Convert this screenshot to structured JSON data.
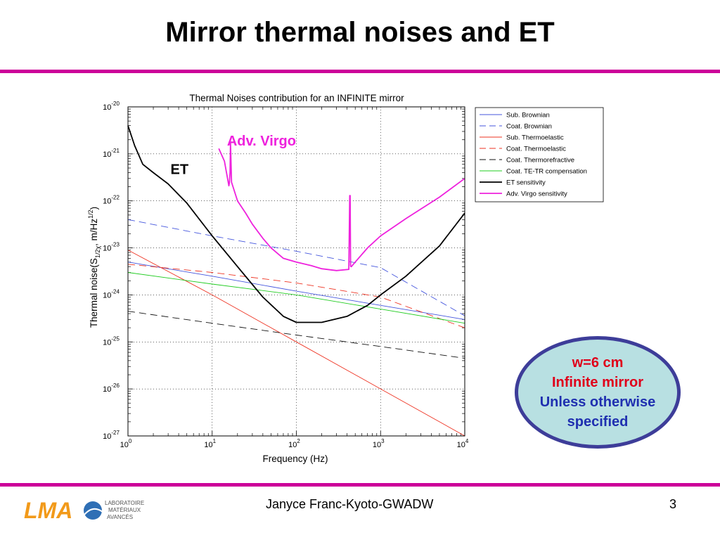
{
  "slide": {
    "title": "Mirror thermal noises and ET",
    "footer": "Janyce Franc-Kyoto-GWADW",
    "page_number": "3",
    "accent_color": "#cc0099"
  },
  "note": {
    "line1": "w=6 cm",
    "line2": "Infinite mirror",
    "line3": "Unless otherwise",
    "line4": "specified",
    "line1_color": "#e0001a",
    "line2_color": "#e0001a",
    "line3_color": "#1f2fb0",
    "line4_color": "#1f2fb0",
    "fill": "#b8e0e2",
    "border": "#3d3d99"
  },
  "logo": {
    "mark": "LMA",
    "text_line1": "LABORATOIRE",
    "text_line2": "MATÉRIAUX",
    "text_line3": "AVANCÉS",
    "icon": "lma-logo-icon"
  },
  "chart_data": {
    "type": "line",
    "title": "Thermal Noises contribution for an INFINITE mirror",
    "xlabel": "Frequency (Hz)",
    "ylabel": "Thermal noise(S",
    "ylabel_sub": "1/2χ",
    "ylabel_mid": ", m/Hz",
    "ylabel_sup": "1/2",
    "ylabel_end": ")",
    "x_scale": "log",
    "y_scale": "log",
    "xlim": [
      1,
      10000
    ],
    "ylim": [
      1e-27,
      1e-20
    ],
    "x_ticks": [
      {
        "value": 1,
        "base": "10",
        "exp": "0"
      },
      {
        "value": 10,
        "base": "10",
        "exp": "1"
      },
      {
        "value": 100,
        "base": "10",
        "exp": "2"
      },
      {
        "value": 1000,
        "base": "10",
        "exp": "3"
      },
      {
        "value": 10000,
        "base": "10",
        "exp": "4"
      }
    ],
    "y_ticks": [
      {
        "value": 1e-20,
        "base": "10",
        "exp": "-20"
      },
      {
        "value": 1e-21,
        "base": "10",
        "exp": "-21"
      },
      {
        "value": 1e-22,
        "base": "10",
        "exp": "-22"
      },
      {
        "value": 1e-23,
        "base": "10",
        "exp": "-23"
      },
      {
        "value": 1e-24,
        "base": "10",
        "exp": "-24"
      },
      {
        "value": 1e-25,
        "base": "10",
        "exp": "-25"
      },
      {
        "value": 1e-26,
        "base": "10",
        "exp": "-26"
      },
      {
        "value": 1e-27,
        "base": "10",
        "exp": "-27"
      }
    ],
    "grid": true,
    "legend_position": "outside-right-top",
    "annotations": [
      {
        "text": "Adv. Virgo",
        "color": "#ee22dd",
        "x": 15,
        "y": 1.5e-21
      },
      {
        "text": "ET",
        "color": "#000000",
        "x": 3.2,
        "y": 3.7e-22
      }
    ],
    "series": [
      {
        "name": "Sub. Brownian",
        "color": "#4455dd",
        "dash": "solid",
        "width": 0.9,
        "x": [
          1,
          10,
          100,
          1000,
          10000
        ],
        "y": [
          5e-24,
          2.5e-24,
          1.2e-24,
          6e-25,
          3e-25
        ]
      },
      {
        "name": "Coat. Brownian",
        "color": "#4455dd",
        "dash": "dashed",
        "width": 0.9,
        "x": [
          1,
          10,
          100,
          1000,
          10000
        ],
        "y": [
          4e-23,
          1.8e-23,
          8.5e-24,
          3.8e-24,
          3.6e-25
        ]
      },
      {
        "name": "Sub. Thermoelastic",
        "color": "#ee3322",
        "dash": "solid",
        "width": 0.9,
        "x": [
          1,
          10,
          100,
          1000,
          10000
        ],
        "y": [
          9e-24,
          1e-24,
          1e-25,
          1e-26,
          1e-27
        ]
      },
      {
        "name": "Coat. Thermoelastic",
        "color": "#ee3322",
        "dash": "dashed",
        "width": 0.9,
        "x": [
          1,
          10,
          100,
          1000,
          10000
        ],
        "y": [
          4.5e-24,
          3e-24,
          1.8e-24,
          9e-25,
          2e-25
        ]
      },
      {
        "name": "Coat. Thermorefractive",
        "color": "#111111",
        "dash": "dashed",
        "width": 0.9,
        "x": [
          1,
          10,
          100,
          1000,
          10000
        ],
        "y": [
          4.5e-25,
          2.5e-25,
          1.4e-25,
          8e-26,
          4.5e-26
        ]
      },
      {
        "name": "Coat. TE-TR compensation",
        "color": "#22cc22",
        "dash": "solid",
        "width": 0.9,
        "x": [
          1,
          10,
          100,
          1000,
          10000
        ],
        "y": [
          3e-24,
          1.7e-24,
          1e-24,
          5e-25,
          2.5e-25
        ]
      },
      {
        "name": "ET sensitivity",
        "color": "#000000",
        "dash": "solid",
        "width": 1.8,
        "x": [
          1,
          1.2,
          1.5,
          2,
          3,
          5,
          10,
          20,
          40,
          70,
          100,
          200,
          400,
          700,
          1000,
          2000,
          5000,
          10000
        ],
        "y": [
          4e-21,
          1.5e-21,
          6e-22,
          4e-22,
          2.3e-22,
          9e-23,
          1.8e-23,
          4e-24,
          9e-25,
          3.5e-25,
          2.6e-25,
          2.6e-25,
          3.5e-25,
          6e-25,
          1e-24,
          2.5e-24,
          1.1e-23,
          5.5e-23
        ]
      },
      {
        "name": "Adv. Virgo sensitivity",
        "color": "#ee22dd",
        "dash": "solid",
        "width": 1.8,
        "x": [
          12,
          14,
          15,
          15.8,
          16,
          16.3,
          16.5,
          17,
          20,
          25,
          30,
          40,
          50,
          70,
          100,
          150,
          200,
          300,
          420,
          430,
          435,
          440,
          445,
          450,
          500,
          700,
          1000,
          2000,
          5000,
          10000
        ],
        "y": [
          1.3e-21,
          7e-22,
          3.5e-22,
          2.1e-22,
          2.4e-22,
          4e-22,
          1.8e-21,
          2.5e-22,
          1e-22,
          5.5e-23,
          3.2e-23,
          1.6e-23,
          1e-23,
          6e-24,
          5e-24,
          4.2e-24,
          3.6e-24,
          3.3e-24,
          3.5e-24,
          1.3e-22,
          1.3e-22,
          4.2e-24,
          4e-24,
          4e-24,
          5e-24,
          1e-23,
          1.8e-23,
          4.2e-23,
          1.2e-22,
          3e-22
        ]
      }
    ]
  }
}
